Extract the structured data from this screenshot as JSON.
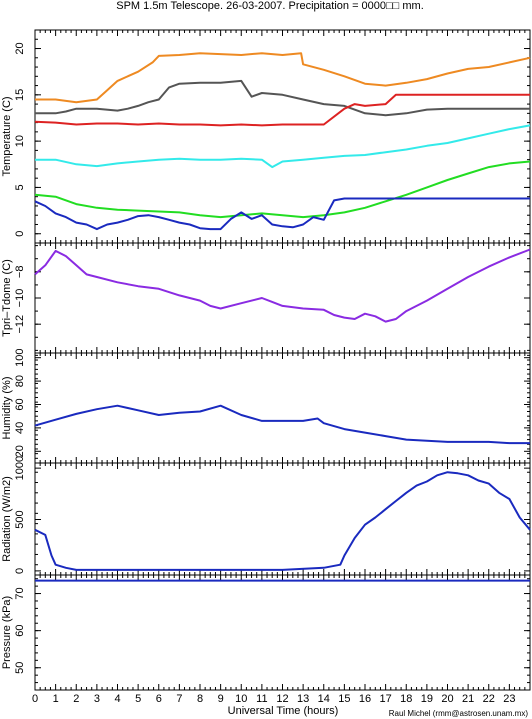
{
  "title": "SPM 1.5m Telescope. 26-03-2007. Precipitation = 0000□□ mm.",
  "xlabel": "Universal Time (hours)",
  "credit": "Raul Michel (rmm@astrosen.unam.mx)",
  "chart_data": [
    {
      "type": "line",
      "panel": "temperature",
      "ylabel": "Temperature (C)",
      "xlim": [
        0,
        24
      ],
      "ylim": [
        -1,
        22
      ],
      "yticks": [
        0,
        5,
        10,
        15,
        20
      ],
      "xticks": [
        0,
        1,
        2,
        3,
        4,
        5,
        6,
        7,
        8,
        9,
        10,
        11,
        12,
        13,
        14,
        15,
        16,
        17,
        18,
        19,
        20,
        21,
        22,
        23
      ],
      "series": [
        {
          "color": "#ee8a22",
          "x": [
            0,
            1,
            2,
            3,
            3.5,
            4,
            5,
            5.7,
            6,
            7,
            8,
            9,
            10,
            11,
            12,
            12.9,
            13,
            14,
            15,
            16,
            17,
            18,
            19,
            20,
            21,
            22,
            23,
            24
          ],
          "y": [
            14.5,
            14.5,
            14.2,
            14.5,
            15.5,
            16.5,
            17.5,
            18.5,
            19.2,
            19.3,
            19.5,
            19.4,
            19.3,
            19.5,
            19.3,
            19.5,
            18.3,
            17.7,
            17.0,
            16.2,
            16.0,
            16.3,
            16.7,
            17.3,
            17.8,
            18.0,
            18.5,
            19.0
          ]
        },
        {
          "color": "#555555",
          "x": [
            0,
            1,
            1.5,
            2,
            3,
            4,
            4.5,
            5,
            5.5,
            6,
            6.5,
            7,
            8,
            9,
            10,
            10.5,
            11,
            12,
            13,
            14,
            15,
            16,
            17,
            18,
            19,
            20,
            21,
            22,
            23,
            24
          ],
          "y": [
            13.0,
            13.0,
            13.2,
            13.5,
            13.5,
            13.3,
            13.5,
            13.8,
            14.2,
            14.5,
            15.8,
            16.2,
            16.3,
            16.3,
            16.5,
            14.8,
            15.2,
            15.0,
            14.5,
            14.0,
            13.8,
            13.0,
            12.8,
            13.0,
            13.4,
            13.5,
            13.5,
            13.5,
            13.5,
            13.5
          ]
        },
        {
          "color": "#dd2222",
          "x": [
            0,
            1,
            2,
            3,
            4,
            5,
            6,
            7,
            8,
            9,
            10,
            11,
            12,
            13,
            14,
            15,
            15.5,
            16,
            17,
            17.5,
            18,
            19,
            20,
            21,
            22,
            23,
            24
          ],
          "y": [
            12.1,
            12.0,
            11.8,
            11.9,
            11.9,
            11.8,
            11.9,
            11.8,
            11.8,
            11.7,
            11.8,
            11.7,
            11.8,
            11.8,
            11.8,
            13.5,
            14.0,
            13.8,
            14.0,
            15.0,
            15.0,
            15.0,
            15.0,
            15.0,
            15.0,
            15.0,
            15.0
          ]
        },
        {
          "color": "#33eaea",
          "x": [
            0,
            1,
            2,
            3,
            4,
            5,
            6,
            7,
            8,
            9,
            10,
            11,
            11.5,
            12,
            13,
            14,
            15,
            16,
            17,
            18,
            19,
            20,
            21,
            22,
            23,
            24
          ],
          "y": [
            8.0,
            8.0,
            7.5,
            7.3,
            7.6,
            7.8,
            8.0,
            8.1,
            8.0,
            8.0,
            8.1,
            8.0,
            7.2,
            7.8,
            8.0,
            8.2,
            8.4,
            8.5,
            8.8,
            9.1,
            9.5,
            9.8,
            10.3,
            10.8,
            11.3,
            11.7
          ]
        },
        {
          "color": "#22dd22",
          "x": [
            0,
            1,
            2,
            3,
            4,
            5,
            6,
            7,
            8,
            9,
            10,
            11,
            12,
            13,
            14,
            15,
            16,
            17,
            18,
            19,
            20,
            21,
            22,
            23,
            24
          ],
          "y": [
            4.2,
            4.0,
            3.2,
            2.8,
            2.6,
            2.5,
            2.4,
            2.3,
            2.0,
            1.8,
            2.0,
            2.2,
            2.0,
            1.8,
            2.0,
            2.3,
            2.8,
            3.5,
            4.2,
            5.0,
            5.8,
            6.5,
            7.2,
            7.6,
            7.8
          ]
        },
        {
          "color": "#1a2abf",
          "x": [
            0,
            0.5,
            1,
            1.5,
            2,
            2.5,
            3,
            3.5,
            4,
            4.5,
            5,
            5.5,
            6,
            6.5,
            7,
            7.5,
            8,
            8.5,
            9,
            9.5,
            10,
            10.5,
            11,
            11.5,
            12,
            12.5,
            13,
            13.5,
            14,
            14.5,
            15,
            16,
            17,
            18,
            19,
            20,
            21,
            22,
            23,
            24
          ],
          "y": [
            3.5,
            3.0,
            2.2,
            1.8,
            1.2,
            1.0,
            0.5,
            1.0,
            1.2,
            1.5,
            1.9,
            2.0,
            1.8,
            1.5,
            1.2,
            1.0,
            0.6,
            0.5,
            0.5,
            1.6,
            2.3,
            1.6,
            2.0,
            1.0,
            0.8,
            0.7,
            1.0,
            1.8,
            1.5,
            3.6,
            3.8,
            3.8,
            3.8,
            3.8,
            3.8,
            3.8,
            3.8,
            3.8,
            3.8,
            3.8
          ]
        }
      ]
    },
    {
      "type": "line",
      "panel": "tdiff",
      "ylabel": "Tpri–Tdome (C)",
      "xlim": [
        0,
        24
      ],
      "ylim": [
        -14.2,
        -5.8
      ],
      "yticks": [
        -12,
        -10,
        -8
      ],
      "xticks": [
        0,
        1,
        2,
        3,
        4,
        5,
        6,
        7,
        8,
        9,
        10,
        11,
        12,
        13,
        14,
        15,
        16,
        17,
        18,
        19,
        20,
        21,
        22,
        23
      ],
      "series": [
        {
          "color": "#8a2be2",
          "x": [
            0,
            0.5,
            1,
            1.5,
            2,
            2.5,
            3,
            4,
            5,
            5.5,
            6,
            7,
            8,
            8.5,
            9,
            10,
            11,
            11.5,
            12,
            13,
            14,
            14.5,
            15,
            15.5,
            16,
            16.5,
            17,
            17.5,
            18,
            19,
            20,
            21,
            22,
            23,
            24
          ],
          "y": [
            -8.2,
            -7.5,
            -6.4,
            -6.8,
            -7.5,
            -8.2,
            -8.4,
            -8.8,
            -9.1,
            -9.2,
            -9.3,
            -9.8,
            -10.2,
            -10.6,
            -10.8,
            -10.4,
            -10.0,
            -10.3,
            -10.6,
            -10.8,
            -10.9,
            -11.3,
            -11.5,
            -11.6,
            -11.2,
            -11.4,
            -11.8,
            -11.6,
            -11.0,
            -10.2,
            -9.3,
            -8.4,
            -7.6,
            -6.9,
            -6.3
          ]
        }
      ]
    },
    {
      "type": "line",
      "panel": "humidity",
      "ylabel": "Humidity (%)",
      "xlim": [
        0,
        24
      ],
      "ylim": [
        10,
        104
      ],
      "yticks": [
        20,
        40,
        60,
        80,
        100
      ],
      "xticks": [
        0,
        1,
        2,
        3,
        4,
        5,
        6,
        7,
        8,
        9,
        10,
        11,
        12,
        13,
        14,
        15,
        16,
        17,
        18,
        19,
        20,
        21,
        22,
        23
      ],
      "series": [
        {
          "color": "#1a2abf",
          "x": [
            0,
            1,
            2,
            3,
            4,
            5,
            6,
            7,
            8,
            9,
            10,
            11,
            12,
            13,
            13.7,
            14,
            15,
            16,
            17,
            18,
            19,
            20,
            21,
            22,
            23,
            24
          ],
          "y": [
            42,
            47,
            52,
            56,
            59,
            55,
            51,
            53,
            54,
            59,
            51,
            46,
            46,
            46,
            48,
            44,
            39,
            36,
            33,
            30,
            29,
            28,
            28,
            28,
            27,
            27
          ]
        }
      ]
    },
    {
      "type": "line",
      "panel": "radiation",
      "ylabel": "Radiation (W/m2)",
      "xlim": [
        0,
        24
      ],
      "ylim": [
        -40,
        1050
      ],
      "yticks": [
        0,
        500,
        1000
      ],
      "xticks": [
        0,
        1,
        2,
        3,
        4,
        5,
        6,
        7,
        8,
        9,
        10,
        11,
        12,
        13,
        14,
        15,
        16,
        17,
        18,
        19,
        20,
        21,
        22,
        23
      ],
      "series": [
        {
          "color": "#1a2abf",
          "x": [
            0,
            0.5,
            0.8,
            1,
            1.5,
            2,
            4,
            8,
            12,
            14,
            14.8,
            15,
            15.5,
            16,
            16.5,
            17,
            17.5,
            18,
            18.5,
            19,
            19.5,
            20,
            20.5,
            21,
            21.5,
            22,
            22.5,
            23,
            23.5,
            24
          ],
          "y": [
            400,
            350,
            150,
            60,
            30,
            10,
            10,
            10,
            10,
            30,
            60,
            150,
            320,
            450,
            520,
            600,
            680,
            760,
            830,
            870,
            930,
            960,
            950,
            930,
            880,
            850,
            760,
            700,
            520,
            400
          ]
        }
      ]
    },
    {
      "type": "line",
      "panel": "pressure",
      "ylabel": "Pressure (kPa)",
      "xlim": [
        0,
        24
      ],
      "ylim": [
        44,
        75
      ],
      "yticks": [
        50,
        60,
        70
      ],
      "xticks": [
        0,
        1,
        2,
        3,
        4,
        5,
        6,
        7,
        8,
        9,
        10,
        11,
        12,
        13,
        14,
        15,
        16,
        17,
        18,
        19,
        20,
        21,
        22,
        23
      ],
      "series": [
        {
          "color": "#1a2abf",
          "x": [
            0,
            24
          ],
          "y": [
            73.5,
            73.5
          ]
        }
      ]
    }
  ]
}
